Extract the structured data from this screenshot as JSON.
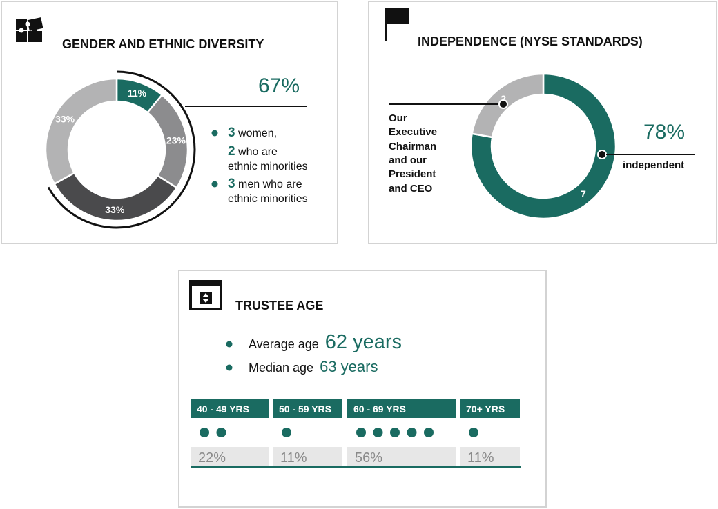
{
  "colors": {
    "teal": "#1a6b61",
    "light_gray": "#b3b3b4",
    "mid_gray": "#8c8c8e",
    "dark_gray": "#4a4a4c",
    "pale_gray": "#e7e7e7"
  },
  "gender": {
    "title": "GENDER AND ETHNIC DIVERSITY",
    "icon": "puzzle-icon",
    "highlight_pct": "67%",
    "legend": [
      {
        "lines": [
          {
            "num": "3",
            "text": " women,"
          },
          {
            "num": "2",
            "text": " who are"
          },
          {
            "num": "",
            "text": "ethnic minorities"
          }
        ]
      },
      {
        "lines": [
          {
            "num": "3",
            "text": " men who are"
          },
          {
            "num": "",
            "text": "ethnic minorities"
          }
        ]
      }
    ]
  },
  "independence": {
    "title": "INDEPENDENCE (NYSE STANDARDS)",
    "icon": "flag-icon",
    "highlight_pct": "78%",
    "independent_label": "independent",
    "callout_lines": [
      "Our",
      "Executive",
      "Chairman",
      "and our",
      "President",
      "and CEO"
    ]
  },
  "age": {
    "title": "TRUSTEE AGE",
    "icon": "calendar-sort-icon",
    "average_label": "Average age",
    "average_value": "62 years",
    "median_label": "Median age",
    "median_value": "63 years"
  },
  "chart_data": [
    {
      "type": "pie",
      "title": "GENDER AND ETHNIC DIVERSITY",
      "categories": [
        "11%",
        "23%",
        "33%",
        "33%"
      ],
      "values": [
        11,
        23,
        33,
        33
      ],
      "labels": [
        "11%",
        "23%",
        "33%",
        "33%"
      ],
      "colors": [
        "#1a6b61",
        "#8c8c8e",
        "#4a4a4c",
        "#b3b3b4"
      ]
    },
    {
      "type": "pie",
      "title": "INDEPENDENCE (NYSE STANDARDS)",
      "categories": [
        "7",
        "2"
      ],
      "values": [
        7,
        2
      ],
      "labels": [
        "7",
        "2"
      ],
      "colors": [
        "#1a6b61",
        "#b3b3b4"
      ]
    },
    {
      "type": "bar",
      "title": "TRUSTEE AGE",
      "categories": [
        "40 - 49 YRS",
        "50 - 59 YRS",
        "60 - 69 YRS",
        "70+ YRS"
      ],
      "values": [
        2,
        1,
        5,
        1
      ],
      "percent_labels": [
        "22%",
        "11%",
        "56%",
        "11%"
      ]
    }
  ]
}
